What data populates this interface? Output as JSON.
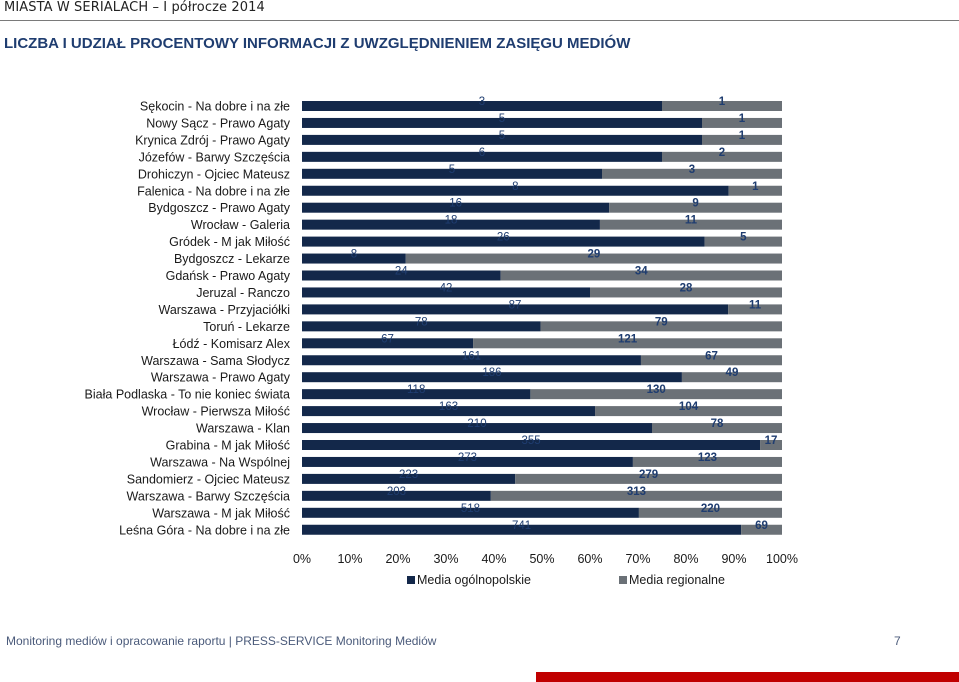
{
  "header": {
    "doc_title": "MIASTA W SERIALACH – I półrocze 2014",
    "section_title": "LICZBA I UDZIAŁ PROCENTOWY INFORMACJI Z UWZGLĘDNIENIEM ZASIĘGU MEDIÓW"
  },
  "chart_data": {
    "type": "bar",
    "orientation": "horizontal",
    "stacked": "percent",
    "categories": [
      "Sękocin - Na dobre i na złe",
      "Nowy Sącz - Prawo Agaty",
      "Krynica Zdrój - Prawo Agaty",
      "Józefów - Barwy Szczęścia",
      "Drohiczyn - Ojciec Mateusz",
      "Falenica - Na dobre i na złe",
      "Bydgoszcz - Prawo Agaty",
      "Wrocław - Galeria",
      "Gródek - M jak Miłość",
      "Bydgoszcz - Lekarze",
      "Gdańsk - Prawo Agaty",
      "Jeruzal - Ranczo",
      "Warszawa - Przyjaciółki",
      "Toruń - Lekarze",
      "Łódź - Komisarz Alex",
      "Warszawa - Sama Słodycz",
      "Warszawa - Prawo Agaty",
      "Biała Podlaska - To nie koniec świata",
      "Wrocław - Pierwsza Miłość",
      "Warszawa - Klan",
      "Grabina - M jak Miłość",
      "Warszawa - Na Wspólnej",
      "Sandomierz - Ojciec Mateusz",
      "Warszawa - Barwy Szczęścia",
      "Warszawa - M jak Miłość",
      "Leśna Góra - Na dobre i na złe"
    ],
    "series": [
      {
        "name": "Media ogólnopolskie",
        "color": "#13284a",
        "values": [
          3,
          5,
          5,
          6,
          5,
          8,
          16,
          18,
          26,
          8,
          24,
          42,
          87,
          78,
          67,
          161,
          186,
          118,
          163,
          210,
          355,
          273,
          223,
          203,
          518,
          741
        ]
      },
      {
        "name": "Media regionalne",
        "color": "#6b7177",
        "values": [
          1,
          1,
          1,
          2,
          3,
          1,
          9,
          11,
          5,
          29,
          34,
          28,
          11,
          79,
          121,
          67,
          49,
          130,
          104,
          78,
          17,
          123,
          279,
          313,
          220,
          69
        ]
      }
    ],
    "xlim": [
      0,
      100
    ],
    "xticks": [
      "0%",
      "10%",
      "20%",
      "30%",
      "40%",
      "50%",
      "60%",
      "70%",
      "80%",
      "90%",
      "100%"
    ],
    "legend_position": "bottom",
    "grid": false
  },
  "footer": {
    "text": "Monitoring mediów i opracowanie raportu  |  PRESS-SERVICE Monitoring Mediów",
    "page": "7"
  }
}
